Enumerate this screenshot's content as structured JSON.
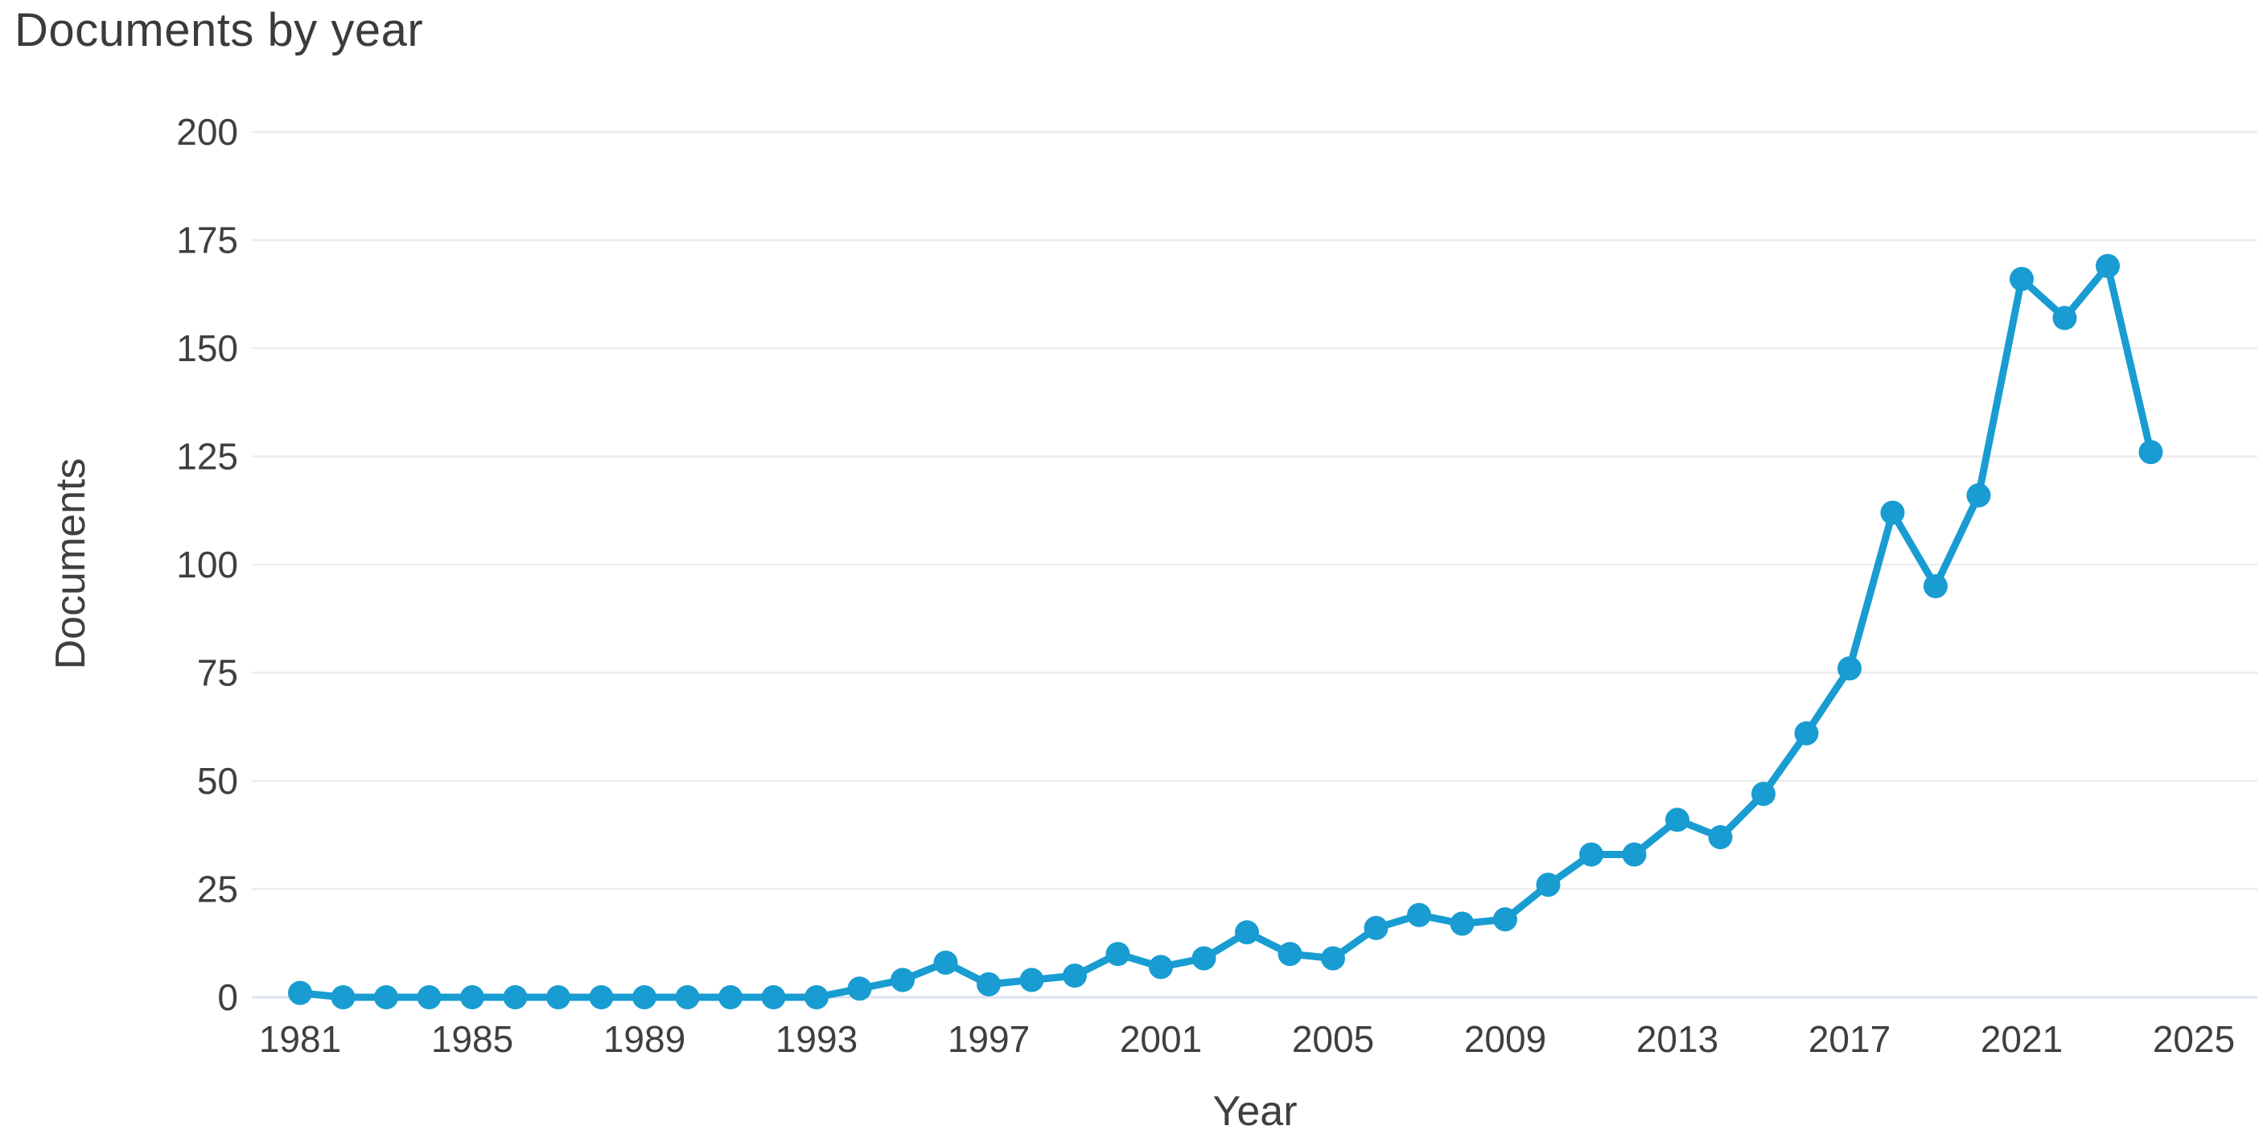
{
  "chart_data": {
    "type": "line",
    "title": "Documents by year",
    "xlabel": "Year",
    "ylabel": "Documents",
    "x": [
      1981,
      1982,
      1983,
      1984,
      1985,
      1986,
      1987,
      1988,
      1989,
      1990,
      1991,
      1992,
      1993,
      1994,
      1995,
      1996,
      1997,
      1998,
      1999,
      2000,
      2001,
      2002,
      2003,
      2004,
      2005,
      2006,
      2007,
      2008,
      2009,
      2010,
      2011,
      2012,
      2013,
      2014,
      2015,
      2016,
      2017,
      2018,
      2019,
      2020,
      2021,
      2022,
      2023,
      2024
    ],
    "values": [
      1,
      0,
      0,
      0,
      0,
      0,
      0,
      0,
      0,
      0,
      0,
      0,
      0,
      2,
      4,
      8,
      3,
      4,
      5,
      10,
      7,
      9,
      15,
      10,
      9,
      16,
      19,
      17,
      18,
      26,
      33,
      33,
      41,
      37,
      47,
      61,
      76,
      112,
      95,
      116,
      166,
      157,
      169,
      126
    ],
    "x_ticks": [
      1981,
      1985,
      1989,
      1993,
      1997,
      2001,
      2005,
      2009,
      2013,
      2017,
      2021,
      2025
    ],
    "y_ticks": [
      0,
      25,
      50,
      75,
      100,
      125,
      150,
      175,
      200
    ],
    "xlim": [
      1981,
      2025
    ],
    "ylim": [
      0,
      200
    ],
    "legend": "none",
    "grid": "horizontal",
    "series_name": "Documents",
    "line_color": "#189cd2",
    "marker_color": "#189cd2",
    "gridline_color": "#ececec",
    "baseline_color": "#dce2f2",
    "axis_text_color": "#3f3f3f"
  }
}
